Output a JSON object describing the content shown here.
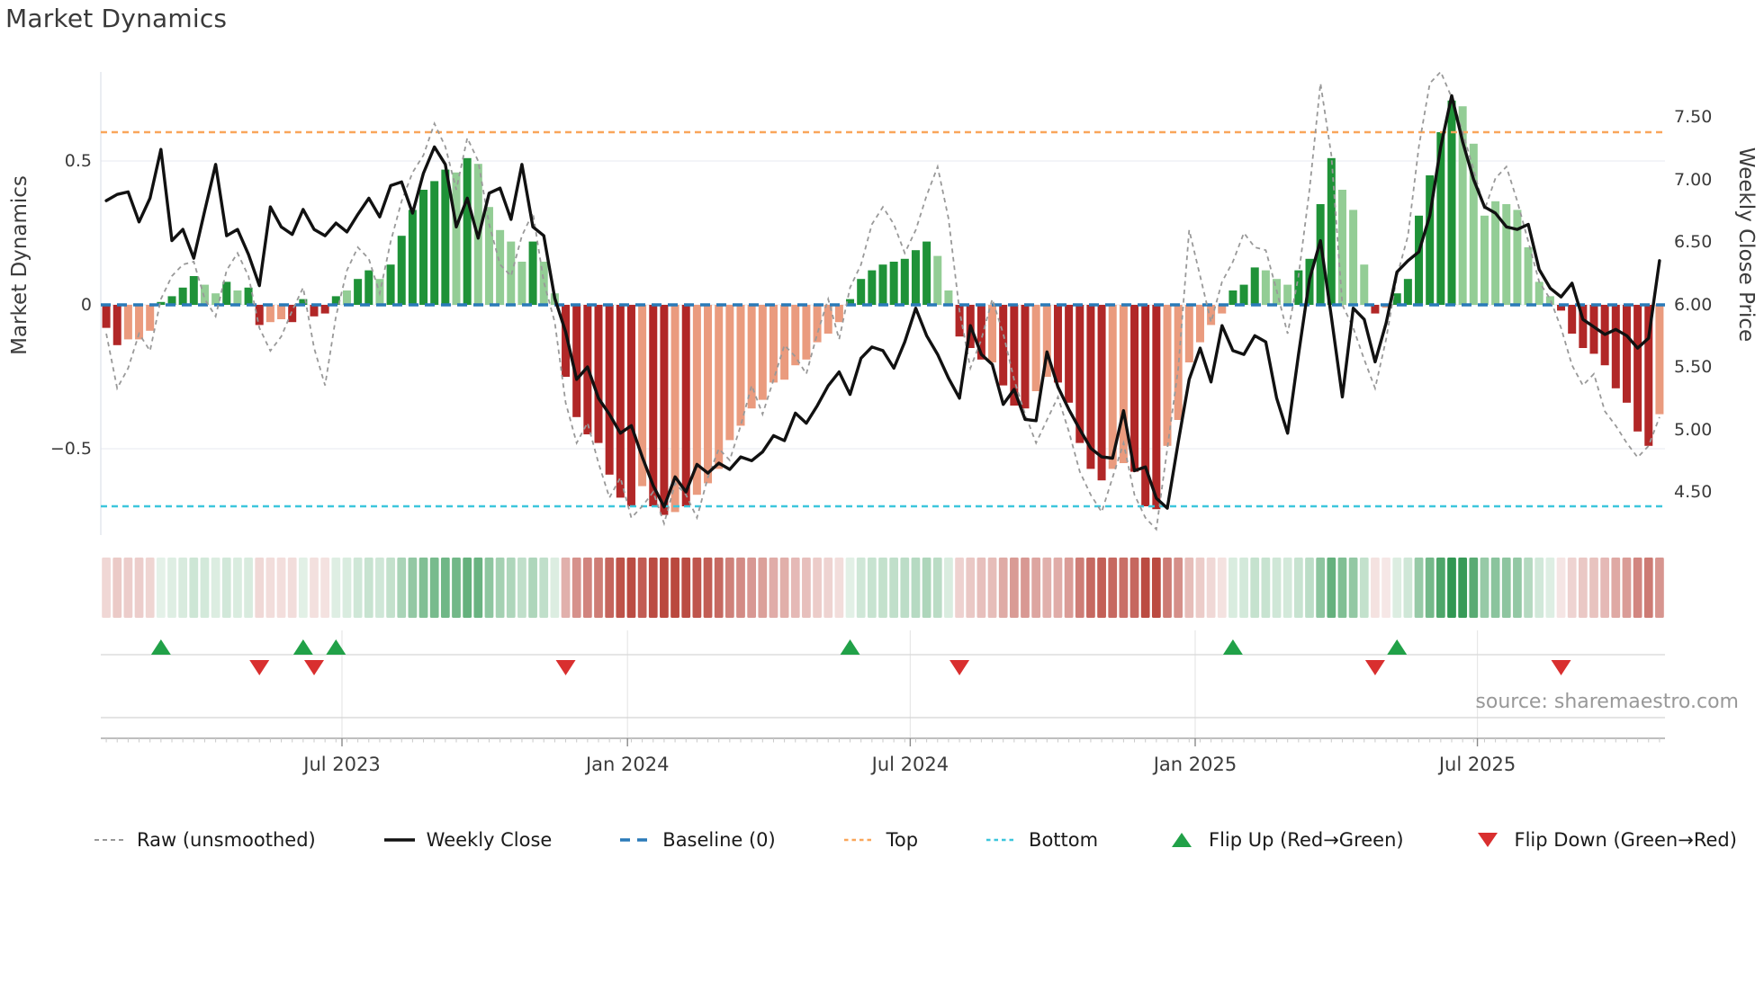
{
  "title": "Market Dynamics",
  "source_note": "source: sharemaestro.com",
  "axes": {
    "left": {
      "title": "Market Dynamics",
      "tick_labels": [
        "0.5",
        "0",
        "−0.5"
      ],
      "tick_values": [
        0.5,
        0,
        -0.5
      ],
      "range": [
        -0.8,
        0.81
      ]
    },
    "right": {
      "title": "Weekly Close Price",
      "tick_labels": [
        "7.50",
        "7.00",
        "6.50",
        "6.00",
        "5.50",
        "5.00",
        "4.50"
      ],
      "tick_values": [
        7.5,
        7.0,
        6.5,
        6.0,
        5.5,
        5.0,
        4.5
      ],
      "range": [
        4.16,
        7.86
      ]
    },
    "x": {
      "tick_labels": [
        "Jul 2023",
        "Jan 2024",
        "Jul 2024",
        "Jan 2025",
        "Jul 2025"
      ],
      "tick_weeks": [
        22.05,
        48.15,
        74.0,
        100.05,
        125.85
      ]
    }
  },
  "legend": {
    "items": [
      {
        "label": "Raw (unsmoothed)",
        "swatch": "raw-dashed"
      },
      {
        "label": "Weekly Close",
        "swatch": "solid-black"
      },
      {
        "label": "Baseline (0)",
        "swatch": "blue-dashed"
      },
      {
        "label": "Top",
        "swatch": "orange-dotted"
      },
      {
        "label": "Bottom",
        "swatch": "cyan-dotted"
      },
      {
        "label": "Flip Up (Red→Green)",
        "swatch": "green-triangle-up"
      },
      {
        "label": "Flip Down (Green→Red)",
        "swatch": "red-triangle-down"
      }
    ]
  },
  "colors": {
    "strong_green": "#1f9238",
    "soft_green": "#93cd95",
    "strong_red": "#b12727",
    "soft_red": "#ea9b7e",
    "baseline": "#2a7ab8",
    "top": "#f9a65a",
    "bottom": "#3dc6dc",
    "raw": "#999999",
    "close": "#111111",
    "flip_up": "#21a148",
    "flip_down": "#d92f2f",
    "heat_green": "#2f9650",
    "heat_red": "#ba483e",
    "grid": "#eceef4",
    "axis_text": "#3b3b3b"
  },
  "chart_data": {
    "type": "combo",
    "x_unit": "week",
    "n_points": 143,
    "reference_lines": {
      "baseline": 0,
      "top": 0.6,
      "bottom": -0.7
    },
    "flip_up_weeks": [
      5,
      18,
      21,
      68,
      103,
      118
    ],
    "flip_down_weeks": [
      14,
      19,
      42,
      78,
      116,
      133
    ],
    "heatmap": {
      "source": "oscillator",
      "position": "below-main"
    },
    "series": [
      {
        "name": "Oscillator (bars)",
        "type": "bar",
        "axis": "left",
        "bar_classes": "rrRRRggggGGgGgrRRrgrrgGggGggggggGgGGGGGgGGrrrrrrrRrrRrRRRRRRRRRRRRRRggggggggGGrrrRrrrRRrrrrrRRrrrRRRRRRgggGGGggggGGGrRggggggGGGGGGGGGrrrrrrrrrR",
        "values": [
          -0.08,
          -0.14,
          -0.12,
          -0.12,
          -0.09,
          0.01,
          0.03,
          0.06,
          0.1,
          0.07,
          0.04,
          0.08,
          0.05,
          0.06,
          -0.07,
          -0.06,
          -0.05,
          -0.06,
          0.02,
          -0.04,
          -0.03,
          0.03,
          0.05,
          0.09,
          0.12,
          0.09,
          0.14,
          0.24,
          0.33,
          0.4,
          0.43,
          0.47,
          0.46,
          0.51,
          0.49,
          0.34,
          0.26,
          0.22,
          0.15,
          0.22,
          0.15,
          0.04,
          -0.25,
          -0.39,
          -0.45,
          -0.48,
          -0.59,
          -0.67,
          -0.7,
          -0.63,
          -0.7,
          -0.73,
          -0.72,
          -0.7,
          -0.66,
          -0.62,
          -0.57,
          -0.47,
          -0.42,
          -0.36,
          -0.33,
          -0.27,
          -0.26,
          -0.21,
          -0.19,
          -0.13,
          -0.1,
          -0.06,
          0.02,
          0.09,
          0.12,
          0.14,
          0.15,
          0.16,
          0.19,
          0.22,
          0.17,
          0.05,
          -0.11,
          -0.15,
          -0.19,
          -0.2,
          -0.28,
          -0.35,
          -0.36,
          -0.3,
          -0.25,
          -0.27,
          -0.34,
          -0.48,
          -0.57,
          -0.61,
          -0.57,
          -0.55,
          -0.58,
          -0.7,
          -0.71,
          -0.49,
          -0.4,
          -0.2,
          -0.13,
          -0.07,
          -0.03,
          0.05,
          0.07,
          0.13,
          0.12,
          0.09,
          0.07,
          0.12,
          0.16,
          0.35,
          0.51,
          0.4,
          0.33,
          0.14,
          -0.03,
          -0.01,
          0.04,
          0.09,
          0.31,
          0.45,
          0.6,
          0.71,
          0.69,
          0.56,
          0.31,
          0.36,
          0.35,
          0.33,
          0.2,
          0.08,
          0.03,
          -0.02,
          -0.1,
          -0.15,
          -0.17,
          -0.21,
          -0.29,
          -0.34,
          -0.44,
          -0.49,
          -0.38
        ]
      },
      {
        "name": "Raw (unsmoothed)",
        "type": "line",
        "axis": "left",
        "style": "dashed",
        "values": [
          -0.1,
          -0.29,
          -0.22,
          -0.1,
          -0.16,
          0.02,
          0.1,
          0.14,
          0.15,
          0.02,
          -0.04,
          0.12,
          0.18,
          0.1,
          -0.08,
          -0.16,
          -0.11,
          -0.02,
          0.06,
          -0.15,
          -0.28,
          -0.04,
          0.12,
          0.2,
          0.16,
          0.04,
          0.22,
          0.36,
          0.46,
          0.52,
          0.63,
          0.55,
          0.4,
          0.58,
          0.5,
          0.28,
          0.14,
          0.1,
          0.24,
          0.32,
          0.08,
          -0.06,
          -0.34,
          -0.48,
          -0.41,
          -0.55,
          -0.67,
          -0.6,
          -0.74,
          -0.7,
          -0.65,
          -0.76,
          -0.62,
          -0.66,
          -0.74,
          -0.6,
          -0.5,
          -0.54,
          -0.42,
          -0.28,
          -0.38,
          -0.26,
          -0.14,
          -0.18,
          -0.24,
          -0.1,
          0.02,
          -0.12,
          0.06,
          0.14,
          0.28,
          0.34,
          0.28,
          0.18,
          0.26,
          0.38,
          0.48,
          0.3,
          -0.02,
          -0.22,
          -0.12,
          0.02,
          -0.1,
          -0.26,
          -0.38,
          -0.48,
          -0.4,
          -0.32,
          -0.44,
          -0.58,
          -0.66,
          -0.72,
          -0.6,
          -0.48,
          -0.66,
          -0.74,
          -0.78,
          -0.5,
          -0.22,
          0.26,
          0.1,
          -0.06,
          0.08,
          0.15,
          0.25,
          0.2,
          0.19,
          0.05,
          -0.1,
          0.1,
          0.4,
          0.77,
          0.52,
          0.0,
          -0.08,
          -0.19,
          -0.29,
          -0.12,
          0.1,
          0.24,
          0.55,
          0.77,
          0.81,
          0.72,
          0.6,
          0.47,
          0.33,
          0.44,
          0.48,
          0.36,
          0.22,
          0.08,
          0.02,
          -0.08,
          -0.21,
          -0.28,
          -0.24,
          -0.37,
          -0.42,
          -0.48,
          -0.53,
          -0.49,
          -0.39
        ]
      },
      {
        "name": "Weekly Close",
        "type": "line",
        "axis": "right",
        "values": [
          6.83,
          6.88,
          6.9,
          6.66,
          6.85,
          7.24,
          6.51,
          6.6,
          6.37,
          6.75,
          7.12,
          6.55,
          6.6,
          6.4,
          6.15,
          6.78,
          6.62,
          6.56,
          6.76,
          6.6,
          6.55,
          6.65,
          6.58,
          6.72,
          6.85,
          6.7,
          6.95,
          6.98,
          6.73,
          7.05,
          7.26,
          7.12,
          6.62,
          6.85,
          6.53,
          6.89,
          6.93,
          6.68,
          7.12,
          6.62,
          6.55,
          6.05,
          5.78,
          5.4,
          5.5,
          5.25,
          5.12,
          4.97,
          5.03,
          4.78,
          4.55,
          4.38,
          4.62,
          4.5,
          4.72,
          4.65,
          4.73,
          4.68,
          4.78,
          4.75,
          4.82,
          4.95,
          4.91,
          5.13,
          5.05,
          5.19,
          5.35,
          5.46,
          5.28,
          5.57,
          5.66,
          5.63,
          5.49,
          5.7,
          5.97,
          5.75,
          5.6,
          5.41,
          5.25,
          5.83,
          5.6,
          5.52,
          5.2,
          5.32,
          5.08,
          5.07,
          5.62,
          5.34,
          5.16,
          5.0,
          4.85,
          4.78,
          4.77,
          5.15,
          4.67,
          4.7,
          4.45,
          4.37,
          4.9,
          5.4,
          5.65,
          5.38,
          5.83,
          5.63,
          5.6,
          5.75,
          5.7,
          5.25,
          4.97,
          5.6,
          6.2,
          6.51,
          5.9,
          5.26,
          5.97,
          5.88,
          5.54,
          5.85,
          6.26,
          6.35,
          6.42,
          6.71,
          7.26,
          7.67,
          7.3,
          7.0,
          6.78,
          6.73,
          6.62,
          6.6,
          6.64,
          6.28,
          6.13,
          6.06,
          6.17,
          5.88,
          5.82,
          5.76,
          5.8,
          5.75,
          5.65,
          5.73,
          6.35
        ]
      }
    ]
  }
}
